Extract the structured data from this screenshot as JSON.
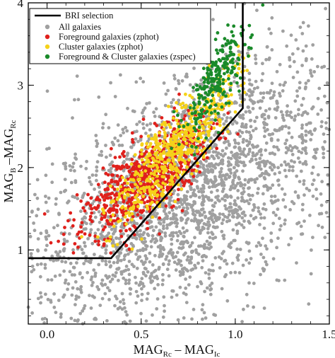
{
  "chart_data": {
    "type": "scatter",
    "xlim": [
      -0.1,
      1.5
    ],
    "ylim": [
      0.1,
      4.0
    ],
    "x_ticks": [
      0.0,
      0.5,
      1.0,
      1.5
    ],
    "x_tick_labels": [
      "0.0",
      "0.5",
      "1.0",
      "1.5"
    ],
    "y_ticks": [
      1,
      2,
      3,
      4
    ],
    "y_tick_labels": [
      "1",
      "2",
      "3",
      "4"
    ],
    "xlabel": {
      "main1": "MAG",
      "sub1": "Rc",
      "mid": " – MAG",
      "sub2": "Ic"
    },
    "ylabel": {
      "main1": "MAG",
      "sub1": "B",
      "mid": " –MAG",
      "sub2": "Rc"
    },
    "legend_placement": "top-left",
    "legend": {
      "line_label": "BRI selection",
      "entries": [
        {
          "label": "All galaxies",
          "color": "#a0a0a0"
        },
        {
          "label": "Foreground galaxies (zphot)",
          "color": "#e0201c"
        },
        {
          "label": "Cluster galaxies (zphot)",
          "color": "#f5d21a"
        },
        {
          "label": "Foreground & Cluster galaxies (zspec)",
          "color": "#1a8a2a"
        }
      ]
    },
    "selection_line": {
      "color": "#000000",
      "x": [
        -0.1,
        0.34,
        1.04,
        1.04
      ],
      "y": [
        0.9,
        0.9,
        2.72,
        4.0
      ]
    },
    "series": [
      {
        "label": "All galaxies",
        "color": "#a0a0a0",
        "count": 2600,
        "center": [
          0.75,
          1.7
        ],
        "spread": [
          0.42,
          0.85
        ],
        "cov": 0.55,
        "seed": 11
      },
      {
        "label": "Foreground galaxies (zphot)",
        "color": "#e0201c",
        "count": 720,
        "center": [
          0.52,
          1.85
        ],
        "spread": [
          0.17,
          0.35
        ],
        "cov": 0.72,
        "seed": 23
      },
      {
        "label": "Cluster galaxies (zphot)",
        "color": "#f5d21a",
        "count": 560,
        "center": [
          0.68,
          2.25
        ],
        "spread": [
          0.16,
          0.45
        ],
        "cov": 0.85,
        "seed": 37
      },
      {
        "label": "Foreground & Cluster galaxies (zspec)",
        "color": "#1a8a2a",
        "count": 240,
        "center": [
          0.9,
          3.05
        ],
        "spread": [
          0.09,
          0.35
        ],
        "cov": 0.75,
        "seed": 53
      }
    ]
  }
}
